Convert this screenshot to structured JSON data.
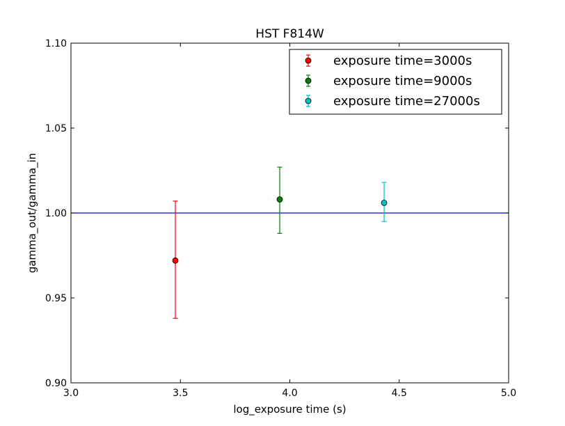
{
  "chart_data": {
    "type": "scatter",
    "title": "HST F814W",
    "xlabel": "log_exposure time (s)",
    "ylabel": "gamma_out/gamma_in",
    "xlim": [
      3.0,
      5.0
    ],
    "ylim": [
      0.9,
      1.1
    ],
    "xticks": [
      "3.0",
      "3.5",
      "4.0",
      "4.5",
      "5.0"
    ],
    "yticks": [
      "0.90",
      "0.95",
      "1.00",
      "1.05",
      "1.10"
    ],
    "grid": false,
    "legend_position": "top-right",
    "reference_line": {
      "y": 1.0,
      "color": "#0000ff"
    },
    "series": [
      {
        "name": "exposure time=3000s",
        "color": "#ff0000",
        "x": 3.477,
        "y": 0.972,
        "yerr_low": 0.938,
        "yerr_high": 1.007
      },
      {
        "name": "exposure time=9000s",
        "color": "#008000",
        "x": 3.954,
        "y": 1.008,
        "yerr_low": 0.988,
        "yerr_high": 1.027
      },
      {
        "name": "exposure time=27000s",
        "color": "#00bfbf",
        "x": 4.431,
        "y": 1.006,
        "yerr_low": 0.995,
        "yerr_high": 1.018
      }
    ]
  }
}
